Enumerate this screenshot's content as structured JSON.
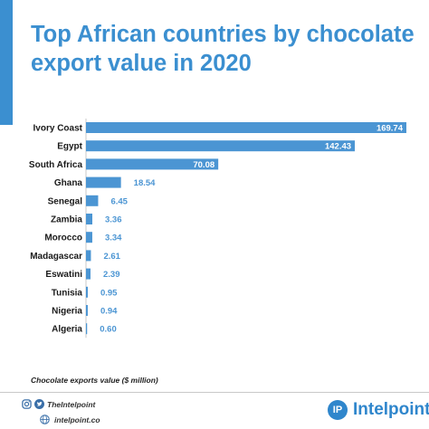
{
  "header": {
    "title_line1": "Top African countries by chocolate",
    "title_line2": "export value in 2020"
  },
  "chart_data": {
    "type": "bar",
    "orientation": "horizontal",
    "title": "Top African countries by chocolate export value in 2020",
    "categories": [
      "Ivory Coast",
      "Egypt",
      "South Africa",
      "Ghana",
      "Senegal",
      "Zambia",
      "Morocco",
      "Madagascar",
      "Eswatini",
      "Tunisia",
      "Nigeria",
      "Algeria"
    ],
    "values": [
      169.74,
      142.43,
      70.08,
      18.54,
      6.45,
      3.36,
      3.34,
      2.61,
      2.39,
      0.95,
      0.94,
      0.6
    ],
    "value_labels": [
      "169.74",
      "142.43",
      "70.08",
      "18.54",
      "6.45",
      "3.36",
      "3.34",
      "2.61",
      "2.39",
      "0.95",
      "0.94",
      "0.60"
    ],
    "xlim": [
      0,
      169.74
    ],
    "xlabel": "Chocolate exports value ($ million)",
    "bar_color": "#4b95d3",
    "label_inside_color": "#ffffff",
    "label_outside_color": "#4b95d3",
    "grid": false,
    "legend": "none"
  },
  "footer": {
    "note": "Chocolate exports value ($ million)",
    "social_handle": "TheIntelpoint",
    "website": "intelpoint.co",
    "brand": "Intelpoint",
    "brand_mark": "IP"
  },
  "colors": {
    "accent": "#3b8fd0",
    "brand": "#2f86cc"
  }
}
